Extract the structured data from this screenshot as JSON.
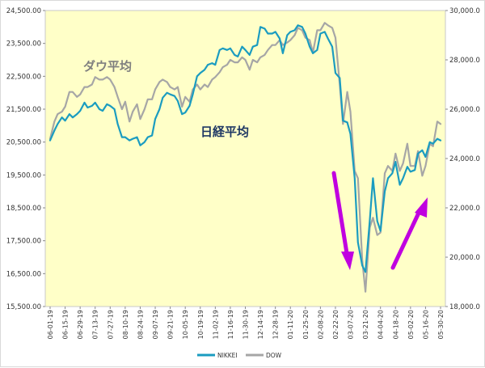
{
  "chart_data": {
    "type": "line",
    "left_axis": {
      "ylim": [
        15500,
        24500
      ],
      "ticks": [
        "15,500.00",
        "16,500.00",
        "17,500.00",
        "18,500.00",
        "19,500.00",
        "20,500.00",
        "21,500.00",
        "22,500.00",
        "23,500.00",
        "24,500.00"
      ]
    },
    "right_axis": {
      "ylim": [
        18000,
        30000
      ],
      "ticks": [
        "18,000.0",
        "20,000.0",
        "22,000.0",
        "24,000.0",
        "26,000.0",
        "28,000.0",
        "30,000.0"
      ]
    },
    "x_ticks": [
      "06-01-19",
      "06-15-19",
      "06-29-19",
      "07-13-19",
      "07-27-19",
      "08-10-19",
      "08-24-19",
      "09-07-19",
      "09-21-19",
      "10-05-19",
      "10-19-19",
      "11-02-19",
      "11-16-19",
      "11-30-19",
      "12-14-19",
      "12-28-19",
      "01-11-20",
      "01-25-20",
      "02-08-20",
      "02-22-20",
      "03-07-20",
      "03-21-20",
      "04-04-20",
      "04-18-20",
      "05-02-20",
      "05-16-20",
      "05-30-20"
    ],
    "series": [
      {
        "name": "NIKKEI",
        "axis": "left",
        "color": "#1b9cc0",
        "points": [
          [
            "06-01-19",
            20550
          ],
          [
            "06-05-19",
            20850
          ],
          [
            "06-08-19",
            21050
          ],
          [
            "06-12-19",
            21250
          ],
          [
            "06-15-19",
            21150
          ],
          [
            "06-19-19",
            21350
          ],
          [
            "06-22-19",
            21250
          ],
          [
            "06-26-19",
            21350
          ],
          [
            "06-29-19",
            21450
          ],
          [
            "07-03-19",
            21700
          ],
          [
            "07-06-19",
            21550
          ],
          [
            "07-10-19",
            21600
          ],
          [
            "07-13-19",
            21700
          ],
          [
            "07-17-19",
            21500
          ],
          [
            "07-20-19",
            21450
          ],
          [
            "07-24-19",
            21650
          ],
          [
            "07-27-19",
            21600
          ],
          [
            "07-31-19",
            21500
          ],
          [
            "08-03-19",
            21050
          ],
          [
            "08-07-19",
            20650
          ],
          [
            "08-10-19",
            20650
          ],
          [
            "08-14-19",
            20550
          ],
          [
            "08-17-19",
            20600
          ],
          [
            "08-21-19",
            20650
          ],
          [
            "08-24-19",
            20400
          ],
          [
            "08-28-19",
            20500
          ],
          [
            "08-31-19",
            20650
          ],
          [
            "09-04-19",
            20700
          ],
          [
            "09-07-19",
            21200
          ],
          [
            "09-11-19",
            21500
          ],
          [
            "09-14-19",
            21850
          ],
          [
            "09-18-19",
            22000
          ],
          [
            "09-21-19",
            21950
          ],
          [
            "09-25-19",
            21900
          ],
          [
            "09-28-19",
            21750
          ],
          [
            "10-02-19",
            21350
          ],
          [
            "10-05-19",
            21400
          ],
          [
            "10-09-19",
            21600
          ],
          [
            "10-12-19",
            21950
          ],
          [
            "10-16-19",
            22500
          ],
          [
            "10-19-19",
            22600
          ],
          [
            "10-23-19",
            22700
          ],
          [
            "10-26-19",
            22850
          ],
          [
            "10-30-19",
            22900
          ],
          [
            "11-02-19",
            22850
          ],
          [
            "11-06-19",
            23300
          ],
          [
            "11-09-19",
            23350
          ],
          [
            "11-13-19",
            23300
          ],
          [
            "11-16-19",
            23350
          ],
          [
            "11-20-19",
            23150
          ],
          [
            "11-23-19",
            23100
          ],
          [
            "11-27-19",
            23400
          ],
          [
            "11-30-19",
            23300
          ],
          [
            "12-04-19",
            23150
          ],
          [
            "12-07-19",
            23400
          ],
          [
            "12-11-19",
            23450
          ],
          [
            "12-14-19",
            24000
          ],
          [
            "12-18-19",
            23950
          ],
          [
            "12-21-19",
            23800
          ],
          [
            "12-25-19",
            23800
          ],
          [
            "12-28-19",
            23850
          ],
          [
            "01-01-20",
            23650
          ],
          [
            "01-04-20",
            23200
          ],
          [
            "01-08-20",
            23750
          ],
          [
            "01-11-20",
            23850
          ],
          [
            "01-15-20",
            23900
          ],
          [
            "01-18-20",
            24050
          ],
          [
            "01-22-20",
            24000
          ],
          [
            "01-25-20",
            23800
          ],
          [
            "01-29-20",
            23400
          ],
          [
            "02-01-20",
            23200
          ],
          [
            "02-05-20",
            23300
          ],
          [
            "02-08-20",
            23800
          ],
          [
            "02-12-20",
            23850
          ],
          [
            "02-15-20",
            23650
          ],
          [
            "02-19-20",
            23400
          ],
          [
            "02-22-20",
            22600
          ],
          [
            "02-26-20",
            22450
          ],
          [
            "02-29-20",
            21150
          ],
          [
            "03-04-20",
            21100
          ],
          [
            "03-07-20",
            20750
          ],
          [
            "03-11-20",
            19400
          ],
          [
            "03-14-20",
            17450
          ],
          [
            "03-18-20",
            16750
          ],
          [
            "03-21-20",
            16550
          ],
          [
            "03-25-20",
            18100
          ],
          [
            "03-28-20",
            19400
          ],
          [
            "04-01-20",
            18100
          ],
          [
            "04-04-20",
            17800
          ],
          [
            "04-08-20",
            19000
          ],
          [
            "04-11-20",
            19400
          ],
          [
            "04-15-20",
            19550
          ],
          [
            "04-18-20",
            19900
          ],
          [
            "04-22-20",
            19200
          ],
          [
            "04-25-20",
            19400
          ],
          [
            "04-29-20",
            19750
          ],
          [
            "05-02-20",
            19600
          ],
          [
            "05-06-20",
            19650
          ],
          [
            "05-09-20",
            20150
          ],
          [
            "05-13-20",
            20250
          ],
          [
            "05-16-20",
            20050
          ],
          [
            "05-20-20",
            20500
          ],
          [
            "05-23-20",
            20450
          ],
          [
            "05-27-20",
            20600
          ],
          [
            "05-30-20",
            20550
          ]
        ]
      },
      {
        "name": "DOW",
        "axis": "right",
        "color": "#a6a6a6",
        "points": [
          [
            "06-01-19",
            24800
          ],
          [
            "06-05-19",
            25500
          ],
          [
            "06-08-19",
            25800
          ],
          [
            "06-12-19",
            25900
          ],
          [
            "06-15-19",
            26100
          ],
          [
            "06-19-19",
            26700
          ],
          [
            "06-22-19",
            26700
          ],
          [
            "06-26-19",
            26500
          ],
          [
            "06-29-19",
            26600
          ],
          [
            "07-03-19",
            26900
          ],
          [
            "07-06-19",
            26900
          ],
          [
            "07-10-19",
            27000
          ],
          [
            "07-13-19",
            27300
          ],
          [
            "07-17-19",
            27200
          ],
          [
            "07-20-19",
            27200
          ],
          [
            "07-24-19",
            27300
          ],
          [
            "07-27-19",
            27200
          ],
          [
            "07-31-19",
            26900
          ],
          [
            "08-03-19",
            26500
          ],
          [
            "08-07-19",
            26000
          ],
          [
            "08-10-19",
            26300
          ],
          [
            "08-14-19",
            25500
          ],
          [
            "08-17-19",
            25900
          ],
          [
            "08-21-19",
            26200
          ],
          [
            "08-24-19",
            25600
          ],
          [
            "08-28-19",
            26000
          ],
          [
            "08-31-19",
            26400
          ],
          [
            "09-04-19",
            26400
          ],
          [
            "09-07-19",
            26800
          ],
          [
            "09-11-19",
            27100
          ],
          [
            "09-14-19",
            27200
          ],
          [
            "09-18-19",
            27100
          ],
          [
            "09-21-19",
            26900
          ],
          [
            "09-25-19",
            26800
          ],
          [
            "09-28-19",
            26900
          ],
          [
            "10-02-19",
            26100
          ],
          [
            "10-05-19",
            26500
          ],
          [
            "10-09-19",
            26300
          ],
          [
            "10-12-19",
            26800
          ],
          [
            "10-16-19",
            27000
          ],
          [
            "10-19-19",
            26800
          ],
          [
            "10-23-19",
            27000
          ],
          [
            "10-26-19",
            26900
          ],
          [
            "10-30-19",
            27200
          ],
          [
            "11-02-19",
            27300
          ],
          [
            "11-06-19",
            27500
          ],
          [
            "11-09-19",
            27700
          ],
          [
            "11-13-19",
            27800
          ],
          [
            "11-16-19",
            28000
          ],
          [
            "11-20-19",
            27900
          ],
          [
            "11-23-19",
            27900
          ],
          [
            "11-27-19",
            28100
          ],
          [
            "11-30-19",
            28000
          ],
          [
            "12-04-19",
            27600
          ],
          [
            "12-07-19",
            28000
          ],
          [
            "12-11-19",
            27900
          ],
          [
            "12-14-19",
            28100
          ],
          [
            "12-18-19",
            28200
          ],
          [
            "12-21-19",
            28400
          ],
          [
            "12-25-19",
            28600
          ],
          [
            "12-28-19",
            28600
          ],
          [
            "01-01-20",
            28800
          ],
          [
            "01-04-20",
            28600
          ],
          [
            "01-08-20",
            28700
          ],
          [
            "01-11-20",
            28800
          ],
          [
            "01-15-20",
            29000
          ],
          [
            "01-18-20",
            29300
          ],
          [
            "01-22-20",
            29200
          ],
          [
            "01-25-20",
            28900
          ],
          [
            "01-29-20",
            28800
          ],
          [
            "02-01-20",
            28300
          ],
          [
            "02-05-20",
            29200
          ],
          [
            "02-08-20",
            29200
          ],
          [
            "02-12-20",
            29500
          ],
          [
            "02-15-20",
            29400
          ],
          [
            "02-19-20",
            29300
          ],
          [
            "02-22-20",
            28900
          ],
          [
            "02-26-20",
            27000
          ],
          [
            "02-29-20",
            25400
          ],
          [
            "03-04-20",
            26700
          ],
          [
            "03-07-20",
            25900
          ],
          [
            "03-11-20",
            23500
          ],
          [
            "03-14-20",
            23200
          ],
          [
            "03-18-20",
            19900
          ],
          [
            "03-21-20",
            18600
          ],
          [
            "03-25-20",
            21200
          ],
          [
            "03-28-20",
            21600
          ],
          [
            "04-01-20",
            20900
          ],
          [
            "04-04-20",
            21000
          ],
          [
            "04-08-20",
            23400
          ],
          [
            "04-11-20",
            23700
          ],
          [
            "04-15-20",
            23500
          ],
          [
            "04-18-20",
            24200
          ],
          [
            "04-22-20",
            23500
          ],
          [
            "04-25-20",
            23800
          ],
          [
            "04-29-20",
            24600
          ],
          [
            "05-02-20",
            23700
          ],
          [
            "05-06-20",
            23700
          ],
          [
            "05-09-20",
            24300
          ],
          [
            "05-13-20",
            23300
          ],
          [
            "05-16-20",
            23700
          ],
          [
            "05-20-20",
            24600
          ],
          [
            "05-23-20",
            24500
          ],
          [
            "05-27-20",
            25500
          ],
          [
            "05-30-20",
            25400
          ]
        ]
      }
    ],
    "annotations": [
      {
        "text": "ダウ平均",
        "color": "#7f7f7f"
      },
      {
        "text": "日経平均",
        "color": "#1f3864"
      }
    ],
    "arrows": [
      {
        "direction": "down",
        "color": "#c000e0"
      },
      {
        "direction": "up",
        "color": "#c000e0"
      }
    ],
    "legend_position": "bottom"
  }
}
